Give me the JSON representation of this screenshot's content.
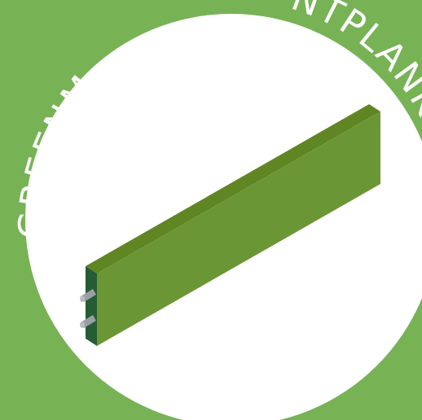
{
  "badge": {
    "text_left": "GREENM",
    "text_right": "NTPLANK"
  },
  "colors": {
    "background": "#77b355",
    "circle": "#ffffff",
    "plank_front": "#6b9636",
    "plank_top": "#5f8623",
    "plank_end": "#255c33",
    "pin": "#9a9fa3"
  },
  "icons": {
    "product": "plank-icon",
    "connector": "pin-icon"
  }
}
